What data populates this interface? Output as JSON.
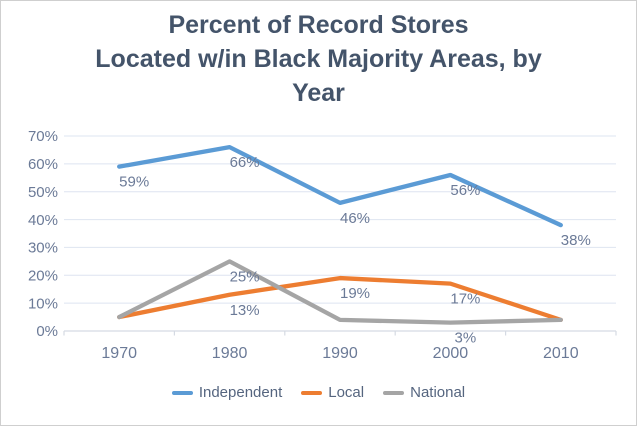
{
  "chart_data": {
    "type": "line",
    "title": "Percent of Record Stores Located w/in Black Majority Areas, by Year",
    "title_lines": [
      "Percent of Record Stores",
      "Located w/in Black Majority Areas, by",
      "Year"
    ],
    "categories": [
      "1970",
      "1980",
      "1990",
      "2000",
      "2010"
    ],
    "series": [
      {
        "name": "Independent",
        "color": "#5B9BD5",
        "values": [
          59,
          66,
          46,
          56,
          38
        ],
        "labels": [
          "59%",
          "66%",
          "46%",
          "56%",
          "38%"
        ]
      },
      {
        "name": "Local",
        "color": "#ED7D31",
        "values": [
          5,
          13,
          19,
          17,
          4
        ],
        "labels": [
          null,
          "13%",
          "19%",
          "17%",
          null
        ]
      },
      {
        "name": "National",
        "color": "#A5A5A5",
        "values": [
          5,
          25,
          4,
          3,
          4
        ],
        "labels": [
          null,
          "25%",
          null,
          "3%",
          null
        ]
      }
    ],
    "y_axis": {
      "min": 0,
      "max": 70,
      "step": 10,
      "tick_labels": [
        "0%",
        "10%",
        "20%",
        "30%",
        "40%",
        "50%",
        "60%",
        "70%"
      ]
    },
    "x_axis": {
      "tick_labels": [
        "1970",
        "1980",
        "1990",
        "2000",
        "2010"
      ]
    },
    "grid": true,
    "legend_position": "bottom",
    "data_label_position": "below"
  },
  "colors": {
    "title": "#44546A",
    "axis_text": "#6B7A97",
    "data_label_text": "#6B7A97",
    "legend_text": "#55657F",
    "gridline": "#DEE4F0",
    "axis_line": "#D5DAE3",
    "background": "#FFFFFF",
    "frame_border": "#CFCFCF"
  }
}
